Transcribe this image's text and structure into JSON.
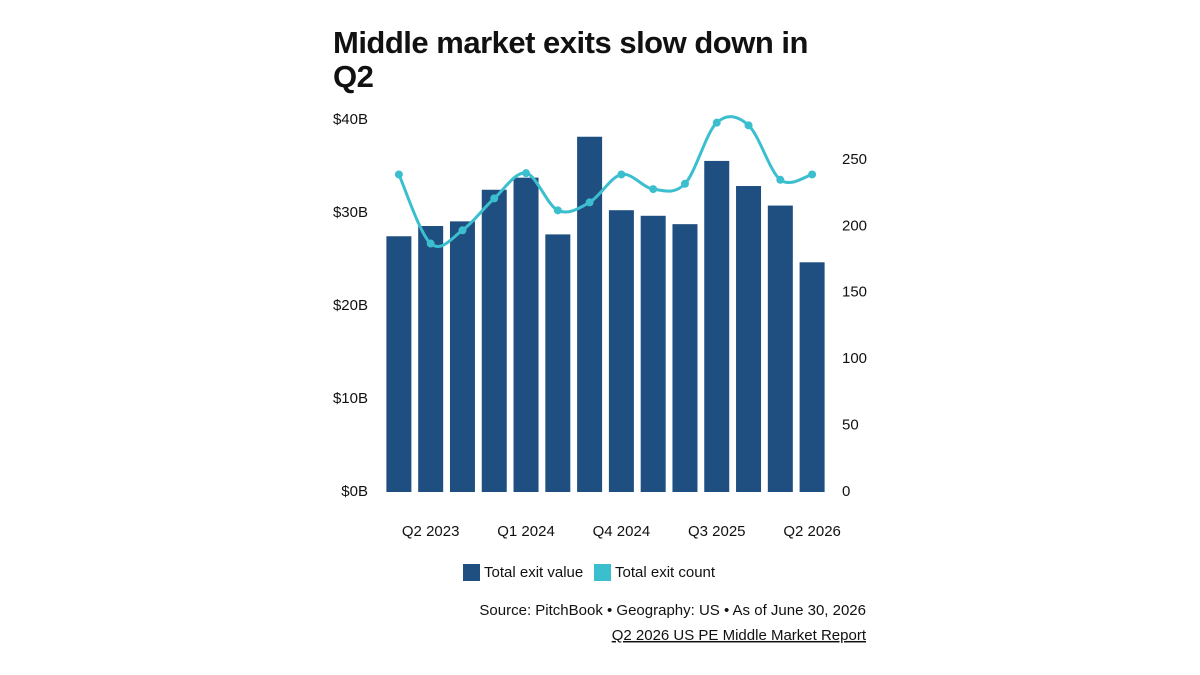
{
  "chart_data": {
    "type": "bar_line",
    "title_lines": [
      "Middle market exits slow down in",
      "Q2"
    ],
    "categories": [
      null,
      "Q2 2023",
      null,
      null,
      "Q1 2024",
      null,
      null,
      "Q4 2024",
      null,
      null,
      "Q3 2025",
      null,
      null,
      "Q2 2026"
    ],
    "series": [
      {
        "name": "Total exit value",
        "color": "#1f4e80",
        "type": "bar",
        "values": [
          27.5,
          28.6,
          29.1,
          32.5,
          33.8,
          27.7,
          38.2,
          30.3,
          29.7,
          28.8,
          35.6,
          32.9,
          30.8,
          24.7
        ]
      },
      {
        "name": "Total exit count",
        "color": "#3bbfcf",
        "type": "line",
        "axis": "y2",
        "values": [
          239,
          187,
          197,
          221,
          240,
          212,
          218,
          239,
          228,
          232,
          278,
          276,
          235,
          239
        ]
      }
    ],
    "ylim": [
      0,
      40
    ],
    "yticks": [
      {
        "value": 0,
        "label": "$0B"
      },
      {
        "value": 10,
        "label": "$10B"
      },
      {
        "value": 20,
        "label": "$20B"
      },
      {
        "value": 30,
        "label": "$30B"
      },
      {
        "value": 40,
        "label": "$40B"
      }
    ],
    "y2lim": [
      0,
      280
    ],
    "y2ticks": [
      0,
      50,
      100,
      150,
      200,
      250
    ],
    "source": "Source: PitchBook • Geography: US • As of June 30, 2026",
    "report_link": "Q2 2026 US PE Middle Market Report"
  }
}
